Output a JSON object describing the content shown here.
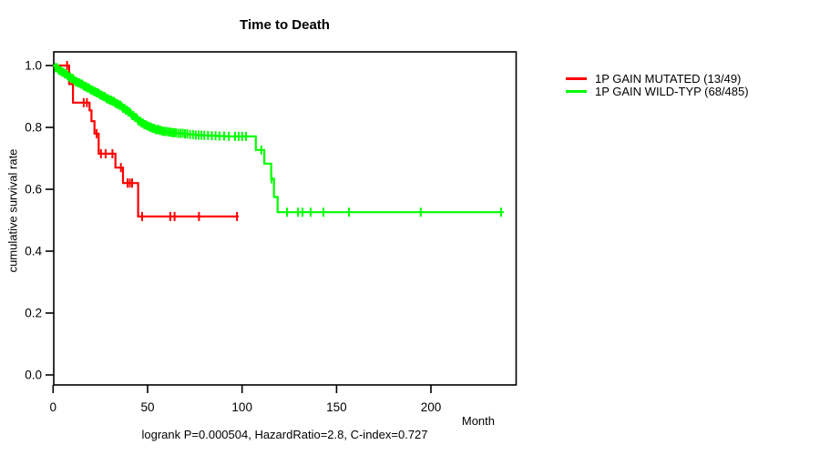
{
  "title": "Time to Death",
  "axes": {
    "x": {
      "label": "Month",
      "ticks": [
        "0",
        "50",
        "100",
        "150",
        "200"
      ]
    },
    "y": {
      "label": "cumulative survival rate",
      "ticks": [
        "0.0",
        "0.2",
        "0.4",
        "0.6",
        "0.8",
        "1.0"
      ]
    }
  },
  "legend": {
    "entries": [
      {
        "label": "1P GAIN MUTATED (13/49)",
        "color": "#ff0000"
      },
      {
        "label": "1P GAIN WILD-TYP (68/485)",
        "color": "#00ff00"
      }
    ]
  },
  "caption": "logrank P=0.000504, HazardRatio=2.8, C-index=0.727",
  "chart_data": {
    "type": "line",
    "subtype": "kaplan_meier_step",
    "title": "Time to Death",
    "xlabel": "Month",
    "ylabel": "cumulative survival rate",
    "xlim": [
      0,
      245
    ],
    "ylim": [
      0,
      1.04
    ],
    "x_ticks": [
      0,
      50,
      100,
      150,
      200
    ],
    "y_ticks": [
      0,
      0.2,
      0.4,
      0.6,
      0.8,
      1
    ],
    "grid": false,
    "legend_position": "right-outside",
    "annotation": "logrank P=0.000504, HazardRatio=2.8, C-index=0.727",
    "series": [
      {
        "name": "1P GAIN MUTATED (13/49)",
        "color": "#ff0000",
        "events": 13,
        "total": 49,
        "steps": [
          [
            0,
            1.0
          ],
          [
            8.5,
            0.94
          ],
          [
            10.5,
            0.88
          ],
          [
            19.3,
            0.855
          ],
          [
            20.3,
            0.82
          ],
          [
            21.9,
            0.78
          ],
          [
            24.1,
            0.715
          ],
          [
            33,
            0.67
          ],
          [
            37,
            0.62
          ],
          [
            45,
            0.512
          ]
        ],
        "end_month": 98.2,
        "censor_months": [
          7.4,
          16.2,
          17.9,
          23,
          25.3,
          27.8,
          31.4,
          35.9,
          39.4,
          40.6,
          41.8,
          47.1,
          62,
          64.3,
          77.2,
          97.3
        ]
      },
      {
        "name": "1P GAIN WILD-TYP (68/485)",
        "color": "#00ff00",
        "events": 68,
        "total": 485,
        "steps": [
          [
            0,
            1.0
          ],
          [
            1,
            0.993
          ],
          [
            2.2,
            0.988
          ],
          [
            3.4,
            0.983
          ],
          [
            4.6,
            0.978
          ],
          [
            5.8,
            0.973
          ],
          [
            7,
            0.968
          ],
          [
            8.2,
            0.963
          ],
          [
            9.4,
            0.958
          ],
          [
            10.6,
            0.953
          ],
          [
            11.8,
            0.948
          ],
          [
            13,
            0.944
          ],
          [
            14.2,
            0.94
          ],
          [
            15.4,
            0.936
          ],
          [
            16.6,
            0.932
          ],
          [
            17.8,
            0.928
          ],
          [
            19,
            0.924
          ],
          [
            20.2,
            0.92
          ],
          [
            21.4,
            0.916
          ],
          [
            22.6,
            0.912
          ],
          [
            23.8,
            0.908
          ],
          [
            25,
            0.904
          ],
          [
            26.2,
            0.9
          ],
          [
            27.4,
            0.896
          ],
          [
            28.6,
            0.892
          ],
          [
            29.8,
            0.888
          ],
          [
            31,
            0.884
          ],
          [
            32.2,
            0.88
          ],
          [
            33.4,
            0.876
          ],
          [
            34.6,
            0.872
          ],
          [
            35.8,
            0.867
          ],
          [
            37,
            0.862
          ],
          [
            38.2,
            0.856
          ],
          [
            39.4,
            0.85
          ],
          [
            40.6,
            0.844
          ],
          [
            41.8,
            0.838
          ],
          [
            43,
            0.832
          ],
          [
            44.2,
            0.826
          ],
          [
            45.4,
            0.82
          ],
          [
            46.6,
            0.814
          ],
          [
            47.8,
            0.809
          ],
          [
            49,
            0.805
          ],
          [
            50.5,
            0.801
          ],
          [
            52,
            0.797
          ],
          [
            54,
            0.793
          ],
          [
            56,
            0.79
          ],
          [
            58,
            0.787
          ],
          [
            60.5,
            0.785
          ],
          [
            63,
            0.783
          ],
          [
            66,
            0.781
          ],
          [
            69,
            0.779
          ],
          [
            72,
            0.777
          ],
          [
            75.5,
            0.775
          ],
          [
            79,
            0.774
          ],
          [
            83,
            0.773
          ],
          [
            87,
            0.772
          ],
          [
            91,
            0.771
          ],
          [
            107.3,
            0.727
          ],
          [
            111.8,
            0.683
          ],
          [
            115.4,
            0.634
          ],
          [
            116.9,
            0.575
          ],
          [
            118.8,
            0.526
          ]
        ],
        "end_month": 238.5,
        "censor_months": [
          1.2,
          2,
          2.7,
          3.4,
          4.1,
          4.8,
          5.5,
          6.2,
          6.9,
          7.6,
          8.3,
          9,
          9.7,
          10.4,
          11.1,
          11.8,
          12.5,
          13.2,
          13.9,
          14.6,
          15.3,
          16,
          16.7,
          17.4,
          18.1,
          18.8,
          19.5,
          20.2,
          20.9,
          21.6,
          22.3,
          23,
          23.7,
          24.4,
          25.1,
          25.8,
          26.5,
          27.2,
          27.9,
          28.6,
          29.3,
          30,
          30.7,
          31.4,
          32.1,
          32.8,
          33.5,
          34.2,
          34.9,
          35.6,
          36.3,
          37,
          37.7,
          38.4,
          39.1,
          39.8,
          40.5,
          41.2,
          41.9,
          42.6,
          43.3,
          44,
          44.7,
          45.4,
          46.1,
          46.8,
          47.5,
          48.2,
          48.9,
          49.6,
          50.3,
          51,
          51.8,
          52.6,
          53.4,
          54.2,
          55,
          55.8,
          56.6,
          57.4,
          58.2,
          59,
          60,
          61,
          62,
          63,
          64,
          65,
          66.2,
          67.4,
          68.6,
          69.8,
          71,
          72.5,
          74,
          75.5,
          77,
          78.5,
          80,
          82,
          84,
          86,
          88,
          90.5,
          93,
          96.3,
          98.2,
          100.1,
          102.1,
          110.2,
          115.6,
          123.8,
          129.6,
          132,
          136.3,
          143.1,
          156.6,
          194.6,
          237.1
        ]
      }
    ]
  }
}
